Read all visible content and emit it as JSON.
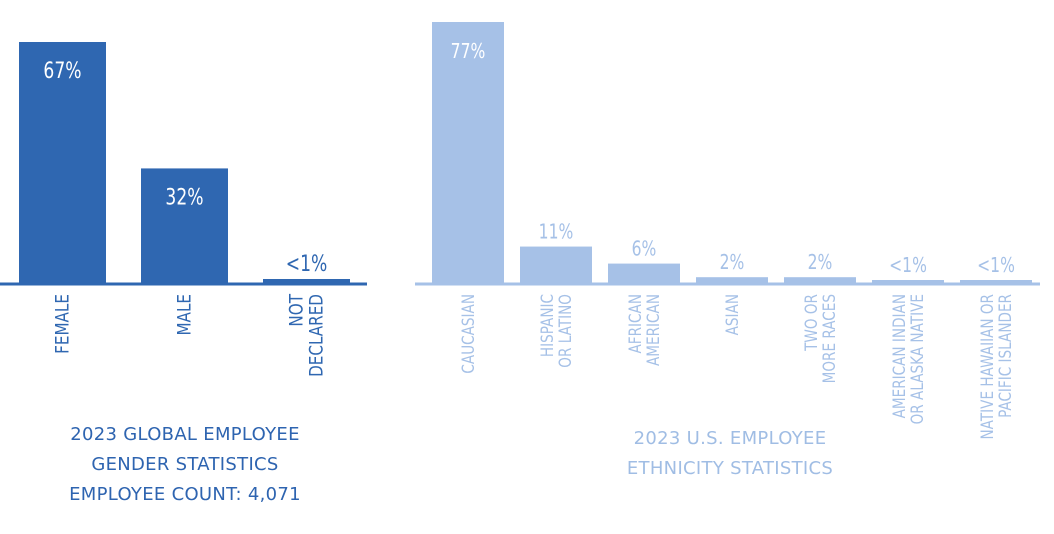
{
  "chart_data": [
    {
      "type": "bar",
      "color": "#2f67b1",
      "categories": [
        [
          "FEMALE"
        ],
        [
          "MALE"
        ],
        [
          "NOT",
          "DECLARED"
        ]
      ],
      "values": [
        67,
        32,
        0.5
      ],
      "value_labels": [
        "67%",
        "32%",
        "<1%"
      ],
      "ylim": [
        0,
        67
      ],
      "caption": [
        "2023 GLOBAL EMPLOYEE",
        "GENDER STATISTICS",
        "EMPLOYEE COUNT: 4,071"
      ]
    },
    {
      "type": "bar",
      "color": "#a6c1e7",
      "categories": [
        [
          "CAUCASIAN"
        ],
        [
          "HISPANIC",
          "OR LATINO"
        ],
        [
          "AFRICAN",
          "AMERICAN"
        ],
        [
          "ASIAN"
        ],
        [
          "TWO OR",
          "MORE RACES"
        ],
        [
          "AMERICAN INDIAN",
          "OR ALASKA NATIVE"
        ],
        [
          "NATIVE HAWAIIAN OR",
          "PACIFIC ISLANDER"
        ]
      ],
      "values": [
        77,
        11,
        6,
        2,
        2,
        0.5,
        0.5
      ],
      "value_labels": [
        "77%",
        "11%",
        "6%",
        "2%",
        "2%",
        "<1%",
        "<1%"
      ],
      "ylim": [
        0,
        77
      ],
      "caption": [
        "2023 U.S. EMPLOYEE",
        "ETHNICITY STATISTICS"
      ]
    }
  ]
}
